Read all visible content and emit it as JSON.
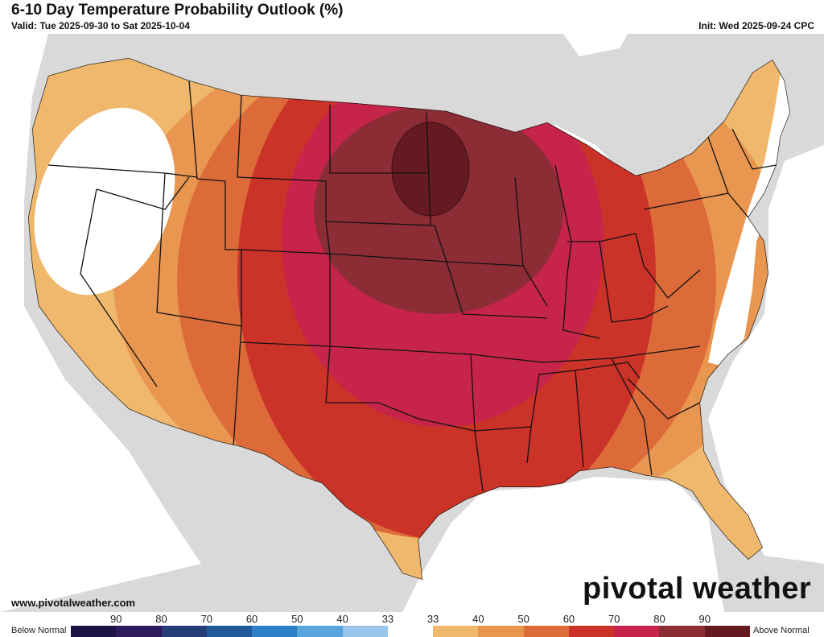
{
  "header": {
    "title": "6-10 Day Temperature Probability Outlook (%)",
    "valid": "Valid: Tue 2025-09-30 to Sat 2025-10-04",
    "init": "Init: Wed 2025-09-24 CPC"
  },
  "footer": {
    "website": "www.pivotalweather.com",
    "brand": "pivotal weather"
  },
  "legend": {
    "below_label": "Below Normal",
    "above_label": "Above Normal",
    "numbers": [
      "90",
      "80",
      "70",
      "60",
      "50",
      "40",
      "33",
      "33",
      "40",
      "50",
      "60",
      "70",
      "80",
      "90"
    ],
    "colors": [
      "#1e1446",
      "#2d1b5c",
      "#263d78",
      "#1f5a9b",
      "#2e7fc6",
      "#58a4dd",
      "#9ac5ea",
      "#ffffff",
      "#f0b86d",
      "#e89650",
      "#dd6b3a",
      "#cb3228",
      "#c6244a",
      "#8c2c35",
      "#651a22"
    ]
  },
  "map": {
    "land_color": "#d9d9d9",
    "water_color": "#ffffff",
    "bins": {
      "normal": "#ffffff",
      "above_33_40": "#f0b86d",
      "above_40_50": "#e89650",
      "above_50_60": "#dd6b3a",
      "above_60_70": "#cb3228",
      "above_70_80": "#c6244a",
      "above_80_90": "#8c2c35",
      "above_90": "#651a22"
    }
  }
}
